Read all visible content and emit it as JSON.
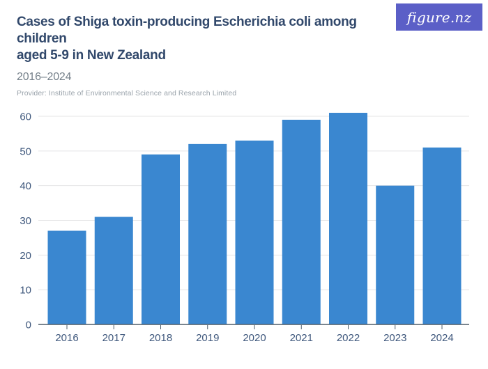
{
  "header": {
    "title": "Cases of Shiga toxin-producing Escherichia coli among children aged 5-9 in New Zealand",
    "title_lines": [
      "Cases of Shiga toxin-producing Escherichia coli among children",
      "aged 5-9 in New Zealand"
    ],
    "subtitle": "2016–2024",
    "provider": "Provider: Institute of Environmental Science and Research Limited",
    "logo_text": "figure.nz"
  },
  "colors": {
    "bar": "#3a87d0",
    "logo_bg": "#5b5fc7",
    "title": "#31486b",
    "subtitle": "#75808a",
    "provider": "#9aa3ab",
    "axis_label": "#3e577c",
    "gridline": "#e4e4e6",
    "axis_line": "#4e5d6a"
  },
  "chart_data": {
    "type": "bar",
    "categories": [
      "2016",
      "2017",
      "2018",
      "2019",
      "2020",
      "2021",
      "2022",
      "2023",
      "2024"
    ],
    "values": [
      27,
      31,
      49,
      52,
      53,
      59,
      61,
      40,
      51
    ],
    "title": "Cases of Shiga toxin-producing Escherichia coli among children aged 5-9 in New Zealand",
    "subtitle": "2016–2024",
    "xlabel": "",
    "ylabel": "",
    "ylim": [
      0,
      60
    ],
    "yticks": [
      0,
      10,
      20,
      30,
      40,
      50,
      60
    ],
    "grid": true,
    "legend": false,
    "bar_color": "#3a87d0"
  }
}
